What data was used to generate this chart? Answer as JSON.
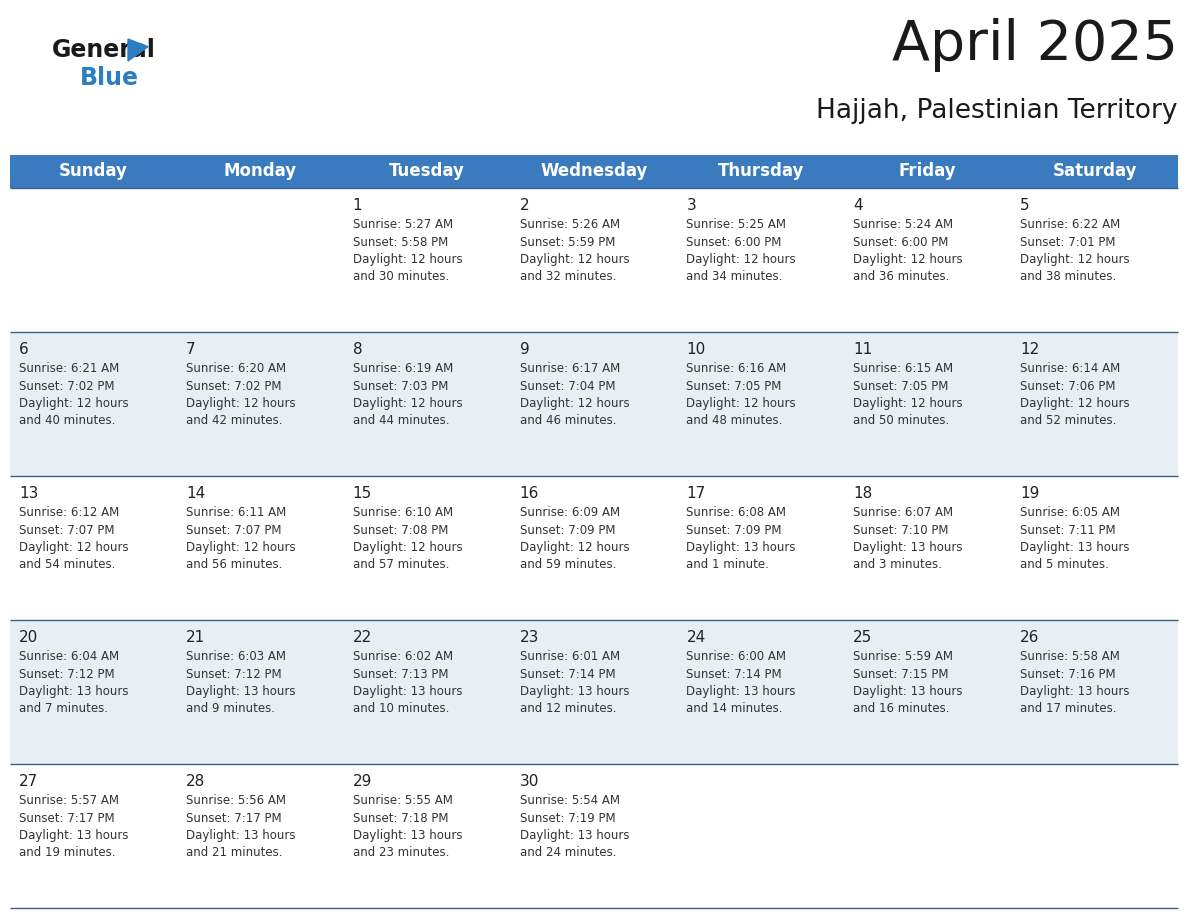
{
  "title": "April 2025",
  "subtitle": "Hajjah, Palestinian Territory",
  "header_color": "#3a7bbf",
  "header_text_color": "#ffffff",
  "background_color": "#ffffff",
  "cell_bg_light": "#e8eef4",
  "cell_bg_white": "#ffffff",
  "separator_color": "#3a5f8a",
  "days_of_week": [
    "Sunday",
    "Monday",
    "Tuesday",
    "Wednesday",
    "Thursday",
    "Friday",
    "Saturday"
  ],
  "weeks": [
    [
      {
        "day": "",
        "info": ""
      },
      {
        "day": "",
        "info": ""
      },
      {
        "day": "1",
        "info": "Sunrise: 5:27 AM\nSunset: 5:58 PM\nDaylight: 12 hours\nand 30 minutes."
      },
      {
        "day": "2",
        "info": "Sunrise: 5:26 AM\nSunset: 5:59 PM\nDaylight: 12 hours\nand 32 minutes."
      },
      {
        "day": "3",
        "info": "Sunrise: 5:25 AM\nSunset: 6:00 PM\nDaylight: 12 hours\nand 34 minutes."
      },
      {
        "day": "4",
        "info": "Sunrise: 5:24 AM\nSunset: 6:00 PM\nDaylight: 12 hours\nand 36 minutes."
      },
      {
        "day": "5",
        "info": "Sunrise: 6:22 AM\nSunset: 7:01 PM\nDaylight: 12 hours\nand 38 minutes."
      }
    ],
    [
      {
        "day": "6",
        "info": "Sunrise: 6:21 AM\nSunset: 7:02 PM\nDaylight: 12 hours\nand 40 minutes."
      },
      {
        "day": "7",
        "info": "Sunrise: 6:20 AM\nSunset: 7:02 PM\nDaylight: 12 hours\nand 42 minutes."
      },
      {
        "day": "8",
        "info": "Sunrise: 6:19 AM\nSunset: 7:03 PM\nDaylight: 12 hours\nand 44 minutes."
      },
      {
        "day": "9",
        "info": "Sunrise: 6:17 AM\nSunset: 7:04 PM\nDaylight: 12 hours\nand 46 minutes."
      },
      {
        "day": "10",
        "info": "Sunrise: 6:16 AM\nSunset: 7:05 PM\nDaylight: 12 hours\nand 48 minutes."
      },
      {
        "day": "11",
        "info": "Sunrise: 6:15 AM\nSunset: 7:05 PM\nDaylight: 12 hours\nand 50 minutes."
      },
      {
        "day": "12",
        "info": "Sunrise: 6:14 AM\nSunset: 7:06 PM\nDaylight: 12 hours\nand 52 minutes."
      }
    ],
    [
      {
        "day": "13",
        "info": "Sunrise: 6:12 AM\nSunset: 7:07 PM\nDaylight: 12 hours\nand 54 minutes."
      },
      {
        "day": "14",
        "info": "Sunrise: 6:11 AM\nSunset: 7:07 PM\nDaylight: 12 hours\nand 56 minutes."
      },
      {
        "day": "15",
        "info": "Sunrise: 6:10 AM\nSunset: 7:08 PM\nDaylight: 12 hours\nand 57 minutes."
      },
      {
        "day": "16",
        "info": "Sunrise: 6:09 AM\nSunset: 7:09 PM\nDaylight: 12 hours\nand 59 minutes."
      },
      {
        "day": "17",
        "info": "Sunrise: 6:08 AM\nSunset: 7:09 PM\nDaylight: 13 hours\nand 1 minute."
      },
      {
        "day": "18",
        "info": "Sunrise: 6:07 AM\nSunset: 7:10 PM\nDaylight: 13 hours\nand 3 minutes."
      },
      {
        "day": "19",
        "info": "Sunrise: 6:05 AM\nSunset: 7:11 PM\nDaylight: 13 hours\nand 5 minutes."
      }
    ],
    [
      {
        "day": "20",
        "info": "Sunrise: 6:04 AM\nSunset: 7:12 PM\nDaylight: 13 hours\nand 7 minutes."
      },
      {
        "day": "21",
        "info": "Sunrise: 6:03 AM\nSunset: 7:12 PM\nDaylight: 13 hours\nand 9 minutes."
      },
      {
        "day": "22",
        "info": "Sunrise: 6:02 AM\nSunset: 7:13 PM\nDaylight: 13 hours\nand 10 minutes."
      },
      {
        "day": "23",
        "info": "Sunrise: 6:01 AM\nSunset: 7:14 PM\nDaylight: 13 hours\nand 12 minutes."
      },
      {
        "day": "24",
        "info": "Sunrise: 6:00 AM\nSunset: 7:14 PM\nDaylight: 13 hours\nand 14 minutes."
      },
      {
        "day": "25",
        "info": "Sunrise: 5:59 AM\nSunset: 7:15 PM\nDaylight: 13 hours\nand 16 minutes."
      },
      {
        "day": "26",
        "info": "Sunrise: 5:58 AM\nSunset: 7:16 PM\nDaylight: 13 hours\nand 17 minutes."
      }
    ],
    [
      {
        "day": "27",
        "info": "Sunrise: 5:57 AM\nSunset: 7:17 PM\nDaylight: 13 hours\nand 19 minutes."
      },
      {
        "day": "28",
        "info": "Sunrise: 5:56 AM\nSunset: 7:17 PM\nDaylight: 13 hours\nand 21 minutes."
      },
      {
        "day": "29",
        "info": "Sunrise: 5:55 AM\nSunset: 7:18 PM\nDaylight: 13 hours\nand 23 minutes."
      },
      {
        "day": "30",
        "info": "Sunrise: 5:54 AM\nSunset: 7:19 PM\nDaylight: 13 hours\nand 24 minutes."
      },
      {
        "day": "",
        "info": ""
      },
      {
        "day": "",
        "info": ""
      },
      {
        "day": "",
        "info": ""
      }
    ]
  ],
  "logo_color_general": "#1a1a1a",
  "logo_color_blue": "#2b7fc0",
  "logo_triangle_color": "#2b7fc0",
  "title_fontsize": 40,
  "subtitle_fontsize": 19,
  "header_fontsize": 12,
  "day_num_fontsize": 11,
  "info_fontsize": 8.5,
  "logo_fontsize": 17
}
